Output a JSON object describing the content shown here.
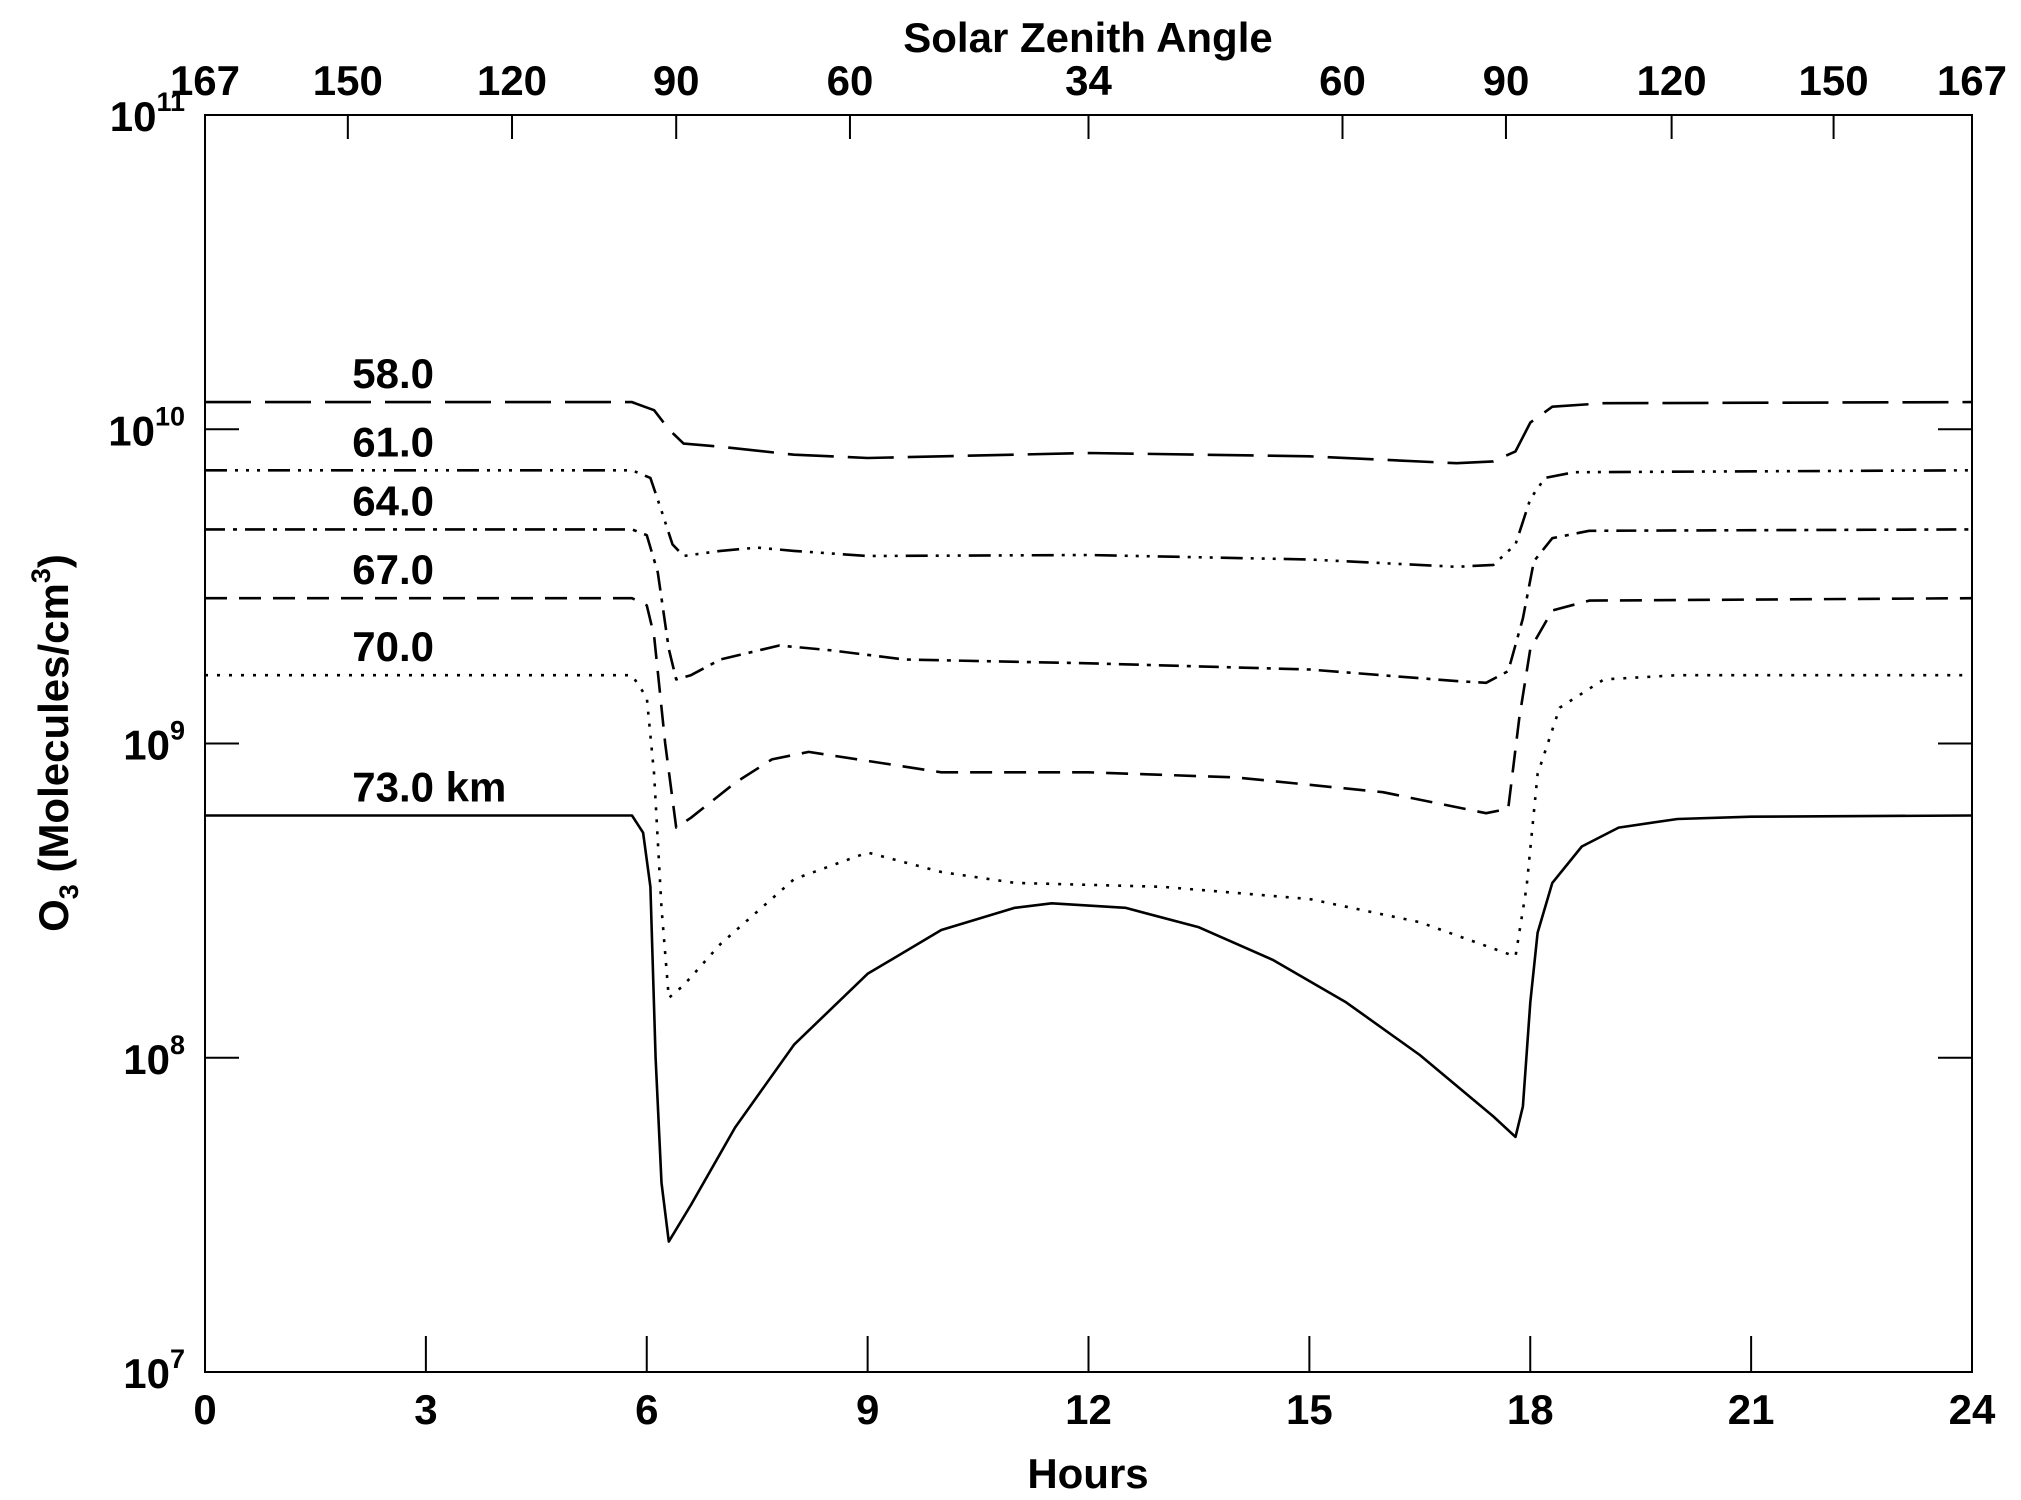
{
  "chart_data": {
    "type": "line",
    "xlabel": "Hours",
    "top_xlabel": "Solar Zenith Angle",
    "ylabel": {
      "base": "O",
      "sub": "3",
      "unit": "(Molecules/cm",
      "sup": "3",
      "close": ")"
    },
    "xlim": [
      0,
      24
    ],
    "ylim": [
      10000000.0,
      100000000000.0
    ],
    "yscale": "log",
    "grid": false,
    "x_ticks": [
      0,
      3,
      6,
      9,
      12,
      15,
      18,
      21,
      24
    ],
    "y_ticks": [
      {
        "base": "10",
        "exp": "7",
        "value": 10000000.0
      },
      {
        "base": "10",
        "exp": "8",
        "value": 100000000.0
      },
      {
        "base": "10",
        "exp": "9",
        "value": 1000000000.0
      },
      {
        "base": "10",
        "exp": "10",
        "value": 10000000000.0
      },
      {
        "base": "10",
        "exp": "11",
        "value": 100000000000.0
      }
    ],
    "top_ticks": [
      {
        "hour": 0,
        "label": "167"
      },
      {
        "hour": 1.94,
        "label": "150"
      },
      {
        "hour": 4.17,
        "label": "120"
      },
      {
        "hour": 6.4,
        "label": "90"
      },
      {
        "hour": 8.76,
        "label": "60"
      },
      {
        "hour": 12,
        "label": "34"
      },
      {
        "hour": 15.45,
        "label": "60"
      },
      {
        "hour": 17.67,
        "label": "90"
      },
      {
        "hour": 19.92,
        "label": "120"
      },
      {
        "hour": 22.12,
        "label": "150"
      },
      {
        "hour": 24,
        "label": "167"
      }
    ],
    "series": [
      {
        "name": "58.0",
        "dash": "long-dash",
        "points": [
          [
            0,
            12200000000.0
          ],
          [
            5.8,
            12200000000.0
          ],
          [
            6.1,
            11500000000.0
          ],
          [
            6.3,
            10000000000.0
          ],
          [
            6.5,
            9000000000.0
          ],
          [
            7,
            8800000000.0
          ],
          [
            8,
            8300000000.0
          ],
          [
            9,
            8100000000.0
          ],
          [
            12,
            8400000000.0
          ],
          [
            15,
            8200000000.0
          ],
          [
            17,
            7800000000.0
          ],
          [
            17.5,
            7900000000.0
          ],
          [
            17.8,
            8500000000.0
          ],
          [
            18,
            10500000000.0
          ],
          [
            18.3,
            11800000000.0
          ],
          [
            19,
            12100000000.0
          ],
          [
            24,
            12200000000.0
          ]
        ]
      },
      {
        "name": "61.0",
        "dash": "dash-dot-dot-dot",
        "points": [
          [
            0,
            7400000000.0
          ],
          [
            5.8,
            7400000000.0
          ],
          [
            6.05,
            7000000000.0
          ],
          [
            6.2,
            5500000000.0
          ],
          [
            6.35,
            4300000000.0
          ],
          [
            6.5,
            3950000000.0
          ],
          [
            7,
            4100000000.0
          ],
          [
            7.5,
            4200000000.0
          ],
          [
            8,
            4100000000.0
          ],
          [
            9,
            3950000000.0
          ],
          [
            12,
            3980000000.0
          ],
          [
            15,
            3850000000.0
          ],
          [
            17,
            3650000000.0
          ],
          [
            17.5,
            3700000000.0
          ],
          [
            17.8,
            4300000000.0
          ],
          [
            18,
            6000000000.0
          ],
          [
            18.2,
            7000000000.0
          ],
          [
            18.6,
            7300000000.0
          ],
          [
            24,
            7400000000.0
          ]
        ]
      },
      {
        "name": "64.0",
        "dash": "dash-dot",
        "points": [
          [
            0,
            4800000000.0
          ],
          [
            5.8,
            4800000000.0
          ],
          [
            6.0,
            4600000000.0
          ],
          [
            6.15,
            3500000000.0
          ],
          [
            6.3,
            2000000000.0
          ],
          [
            6.4,
            1600000000.0
          ],
          [
            6.6,
            1650000000.0
          ],
          [
            7,
            1850000000.0
          ],
          [
            7.8,
            2050000000.0
          ],
          [
            8.5,
            1980000000.0
          ],
          [
            9.5,
            1850000000.0
          ],
          [
            12,
            1800000000.0
          ],
          [
            15,
            1720000000.0
          ],
          [
            17,
            1580000000.0
          ],
          [
            17.4,
            1560000000.0
          ],
          [
            17.7,
            1700000000.0
          ],
          [
            17.9,
            2500000000.0
          ],
          [
            18.05,
            3800000000.0
          ],
          [
            18.3,
            4500000000.0
          ],
          [
            18.8,
            4750000000.0
          ],
          [
            24,
            4800000000.0
          ]
        ]
      },
      {
        "name": "67.0",
        "dash": "dash",
        "points": [
          [
            0,
            2900000000.0
          ],
          [
            5.8,
            2900000000.0
          ],
          [
            6.0,
            2750000000.0
          ],
          [
            6.1,
            2200000000.0
          ],
          [
            6.25,
            1000000000.0
          ],
          [
            6.4,
            540000000.0
          ],
          [
            6.6,
            580000000.0
          ],
          [
            7.2,
            750000000.0
          ],
          [
            7.7,
            890000000.0
          ],
          [
            8.2,
            940000000.0
          ],
          [
            9,
            880000000.0
          ],
          [
            10,
            810000000.0
          ],
          [
            12,
            810000000.0
          ],
          [
            14,
            780000000.0
          ],
          [
            16,
            700000000.0
          ],
          [
            17.4,
            600000000.0
          ],
          [
            17.7,
            620000000.0
          ],
          [
            17.85,
            1200000000.0
          ],
          [
            18.0,
            2000000000.0
          ],
          [
            18.3,
            2650000000.0
          ],
          [
            18.8,
            2850000000.0
          ],
          [
            24,
            2900000000.0
          ]
        ]
      },
      {
        "name": "70.0",
        "dash": "dotted",
        "points": [
          [
            0,
            1650000000.0
          ],
          [
            5.8,
            1650000000.0
          ],
          [
            6.0,
            1400000000.0
          ],
          [
            6.1,
            800000000.0
          ],
          [
            6.2,
            300000000.0
          ],
          [
            6.3,
            155000000.0
          ],
          [
            6.5,
            170000000.0
          ],
          [
            7,
            230000000.0
          ],
          [
            8,
            370000000.0
          ],
          [
            9,
            450000000.0
          ],
          [
            10,
            390000000.0
          ],
          [
            11,
            360000000.0
          ],
          [
            13,
            350000000.0
          ],
          [
            15,
            320000000.0
          ],
          [
            16.5,
            270000000.0
          ],
          [
            17.8,
            210000000.0
          ],
          [
            17.95,
            350000000.0
          ],
          [
            18.1,
            800000000.0
          ],
          [
            18.4,
            1300000000.0
          ],
          [
            19,
            1600000000.0
          ],
          [
            20,
            1650000000.0
          ],
          [
            24,
            1650000000.0
          ]
        ]
      },
      {
        "name": "73.0 km",
        "dash": "solid",
        "points": [
          [
            0,
            590000000.0
          ],
          [
            5.8,
            590000000.0
          ],
          [
            5.95,
            520000000.0
          ],
          [
            6.05,
            350000000.0
          ],
          [
            6.12,
            100000000.0
          ],
          [
            6.2,
            40000000.0
          ],
          [
            6.3,
            26000000.0
          ],
          [
            6.6,
            34000000.0
          ],
          [
            7.2,
            60000000.0
          ],
          [
            8,
            110000000.0
          ],
          [
            9,
            185000000.0
          ],
          [
            10,
            255000000.0
          ],
          [
            11,
            300000000.0
          ],
          [
            11.5,
            310000000.0
          ],
          [
            12.5,
            300000000.0
          ],
          [
            13.5,
            260000000.0
          ],
          [
            14.5,
            205000000.0
          ],
          [
            15.5,
            150000000.0
          ],
          [
            16.5,
            102000000.0
          ],
          [
            17.5,
            65000000.0
          ],
          [
            17.8,
            56000000.0
          ],
          [
            17.9,
            70000000.0
          ],
          [
            18.0,
            150000000.0
          ],
          [
            18.1,
            250000000.0
          ],
          [
            18.3,
            360000000.0
          ],
          [
            18.7,
            470000000.0
          ],
          [
            19.2,
            540000000.0
          ],
          [
            20,
            575000000.0
          ],
          [
            21,
            585000000.0
          ],
          [
            24,
            590000000.0
          ]
        ]
      }
    ],
    "series_label_hour": 2.0,
    "line_color": "#000000"
  }
}
